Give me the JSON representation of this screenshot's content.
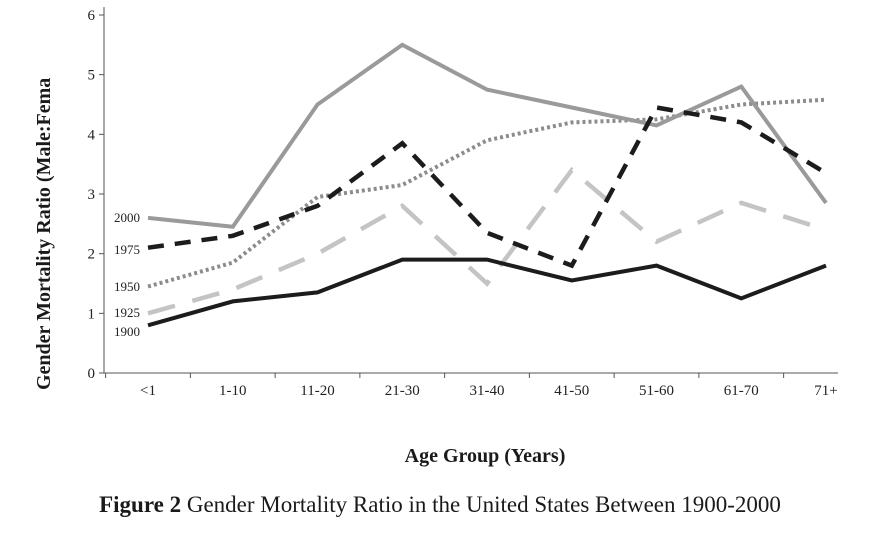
{
  "caption": {
    "prefix": "Figure 2",
    "text": "Gender Mortality Ratio in the United States Between 1900-2000"
  },
  "chart_data": {
    "type": "line",
    "xlabel": "Age Group (Years)",
    "ylabel": "Gender Mortality Ratio (Male:Fema",
    "categories": [
      "<1",
      "1-10",
      "11-20",
      "21-30",
      "31-40",
      "41-50",
      "51-60",
      "61-70",
      "71+"
    ],
    "ylim": [
      0,
      6
    ],
    "yticks": [
      "0",
      "1",
      "2",
      "3",
      "4",
      "5",
      "6"
    ],
    "grid": false,
    "series": [
      {
        "name": "2000",
        "color": "#9a9a9a",
        "style": "solid",
        "values": [
          2.6,
          2.45,
          4.5,
          5.5,
          4.75,
          4.45,
          4.15,
          4.8,
          2.85
        ]
      },
      {
        "name": "1975",
        "color": "#1c1c1c",
        "style": "dashed",
        "values": [
          2.1,
          2.3,
          2.8,
          3.85,
          2.35,
          1.8,
          4.45,
          4.2,
          3.35
        ]
      },
      {
        "name": "1950",
        "color": "#8c8c8c",
        "style": "dotted",
        "values": [
          1.45,
          1.85,
          2.95,
          3.15,
          3.9,
          4.2,
          4.25,
          4.5,
          4.58
        ]
      },
      {
        "name": "1925",
        "color": "#c4c4c4",
        "style": "longdash",
        "values": [
          1.0,
          1.4,
          2.0,
          2.8,
          1.5,
          3.4,
          2.2,
          2.85,
          2.4
        ]
      },
      {
        "name": "1900",
        "color": "#1c1c1c",
        "style": "solid",
        "values": [
          0.8,
          1.2,
          1.35,
          1.9,
          1.9,
          1.55,
          1.8,
          1.25,
          1.8
        ]
      }
    ]
  }
}
